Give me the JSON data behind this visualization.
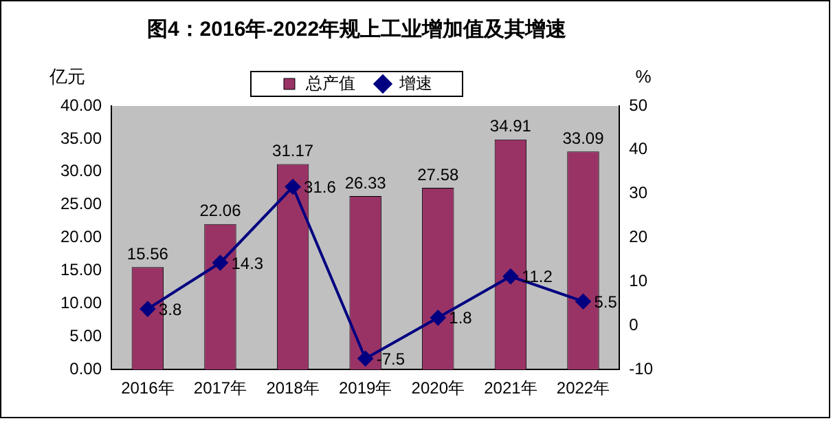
{
  "chart_data": {
    "type": "bar",
    "title": "图4：2016年-2022年规上工业增加值及其增速",
    "categories": [
      "2016年",
      "2017年",
      "2018年",
      "2019年",
      "2020年",
      "2021年",
      "2022年"
    ],
    "series": [
      {
        "name": "总产值",
        "color": "#993366",
        "values": [
          15.56,
          22.06,
          31.17,
          26.33,
          27.58,
          34.91,
          33.09
        ]
      },
      {
        "name": "增速",
        "type": "line",
        "axis": "y2",
        "color": "#000080",
        "values": [
          3.8,
          14.3,
          31.6,
          -7.5,
          1.8,
          11.2,
          5.5
        ]
      }
    ],
    "ylabel": "亿元",
    "y2label": "%",
    "ylim": [
      0,
      40
    ],
    "yticks": [
      {
        "value": 0,
        "label": "0.00"
      },
      {
        "value": 5,
        "label": "5.00"
      },
      {
        "value": 10,
        "label": "10.00"
      },
      {
        "value": 15,
        "label": "15.00"
      },
      {
        "value": 20,
        "label": "20.00"
      },
      {
        "value": 25,
        "label": "25.00"
      },
      {
        "value": 30,
        "label": "30.00"
      },
      {
        "value": 35,
        "label": "35.00"
      },
      {
        "value": 40,
        "label": "40.00"
      }
    ],
    "y2lim": [
      -10,
      50
    ],
    "y2ticks": [
      -10,
      0,
      10,
      20,
      30,
      40,
      50
    ],
    "grid": false,
    "legend": "top",
    "marker": "diamond",
    "line_style": "solid",
    "data_labels": true
  }
}
